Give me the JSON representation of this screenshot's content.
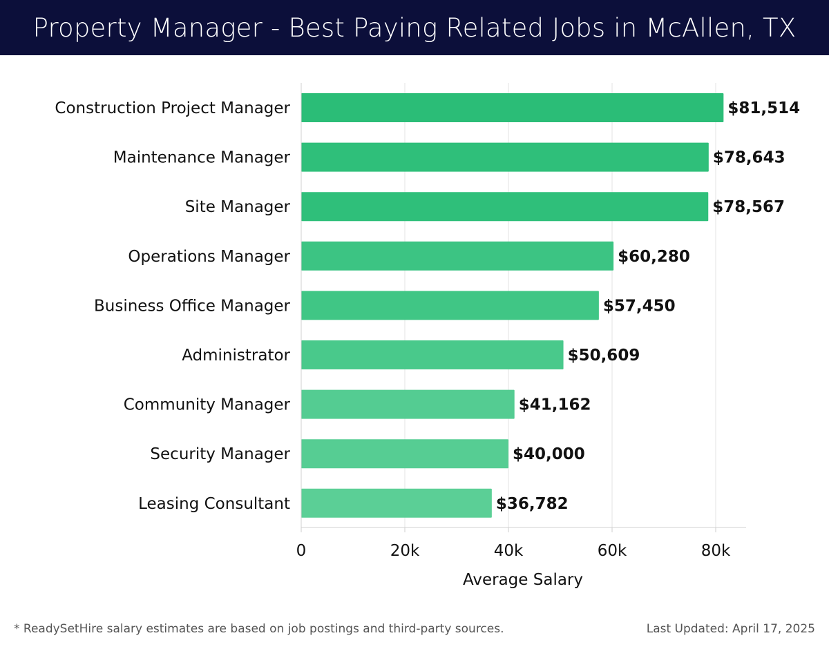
{
  "header": {
    "title": "Property Manager - Best Paying Related Jobs in McAllen, TX"
  },
  "chart_data": {
    "type": "bar",
    "orientation": "horizontal",
    "categories": [
      "Construction Project Manager",
      "Maintenance Manager",
      "Site Manager",
      "Operations Manager",
      "Business Office Manager",
      "Administrator",
      "Community Manager",
      "Security Manager",
      "Leasing Consultant"
    ],
    "values": [
      81514,
      78643,
      78567,
      60280,
      57450,
      50609,
      41162,
      40000,
      36782
    ],
    "value_labels": [
      "$81,514",
      "$78,643",
      "$78,567",
      "$60,280",
      "$57,450",
      "$50,609",
      "$41,162",
      "$40,000",
      "$36,782"
    ],
    "xlabel": "Average Salary",
    "ylabel": "",
    "xlim": [
      0,
      86000
    ],
    "xticks": [
      0,
      20000,
      40000,
      60000,
      80000
    ],
    "xtick_labels": [
      "0",
      "20k",
      "40k",
      "60k",
      "80k"
    ],
    "grid": "vertical",
    "bar_colors": [
      "#2bbd77",
      "#2fbf7a",
      "#2fbf7a",
      "#3cc483",
      "#40c685",
      "#49c98b",
      "#54cc92",
      "#56cd93",
      "#5bcf96"
    ]
  },
  "footer": {
    "note": "* ReadySetHire salary estimates are based on job postings and third-party sources.",
    "updated": "Last Updated: April 17, 2025"
  }
}
